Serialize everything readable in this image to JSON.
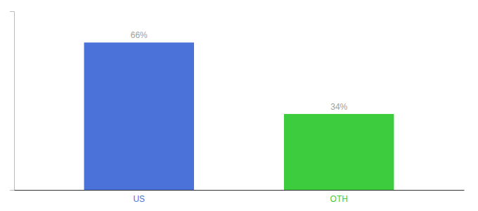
{
  "chart_data": {
    "type": "bar",
    "categories": [
      "US",
      "OTH"
    ],
    "values": [
      66,
      34
    ],
    "value_labels": [
      "66%",
      "34%"
    ],
    "colors": [
      "#4a72d9",
      "#3dcc3d"
    ],
    "ylim": [
      0,
      80
    ],
    "data_labels": true,
    "tick_labels": "x"
  }
}
